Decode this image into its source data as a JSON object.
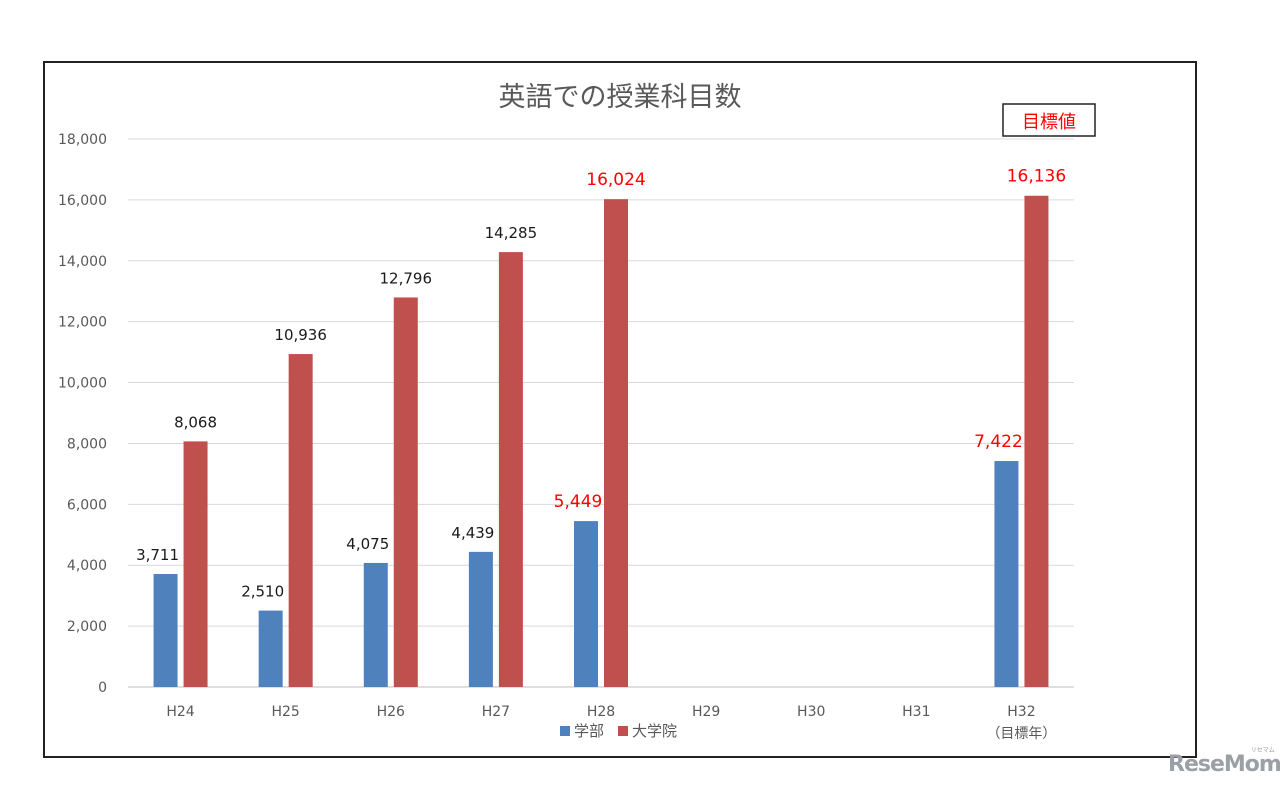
{
  "chart_data": {
    "type": "bar",
    "title": "英語での授業科目数",
    "target_label": "目標値",
    "categories": [
      "H24",
      "H25",
      "H26",
      "H27",
      "H28",
      "H29",
      "H30",
      "H31",
      "H32"
    ],
    "category_sublabels": [
      "",
      "",
      "",
      "",
      "",
      "",
      "",
      "",
      "（目標年）"
    ],
    "series": [
      {
        "name": "学部",
        "color": "#4f81bd",
        "values": [
          3711,
          2510,
          4075,
          4439,
          5449,
          null,
          null,
          null,
          7422
        ],
        "labels": [
          "3,711",
          "2,510",
          "4,075",
          "4,439",
          "5,449",
          "",
          "",
          "",
          "7,422"
        ]
      },
      {
        "name": "大学院",
        "color": "#c0504d",
        "values": [
          8068,
          10936,
          12796,
          14285,
          16024,
          null,
          null,
          null,
          16136
        ],
        "labels": [
          "8,068",
          "10,936",
          "12,796",
          "14,285",
          "16,024",
          "",
          "",
          "",
          "16,136"
        ]
      }
    ],
    "highlight_label_color": "#ff0000",
    "highlight_categories": [
      "H28",
      "H32"
    ],
    "ylim": [
      0,
      18000
    ],
    "yticks": [
      0,
      2000,
      4000,
      6000,
      8000,
      10000,
      12000,
      14000,
      16000,
      18000
    ],
    "ytick_labels": [
      "0",
      "2,000",
      "4,000",
      "6,000",
      "8,000",
      "10,000",
      "12,000",
      "14,000",
      "16,000",
      "18,000"
    ],
    "grid": true,
    "legend": "bottom-center",
    "xlabel": "",
    "ylabel": ""
  },
  "watermark": {
    "text": "ReseMom",
    "sub": "リセマム"
  }
}
